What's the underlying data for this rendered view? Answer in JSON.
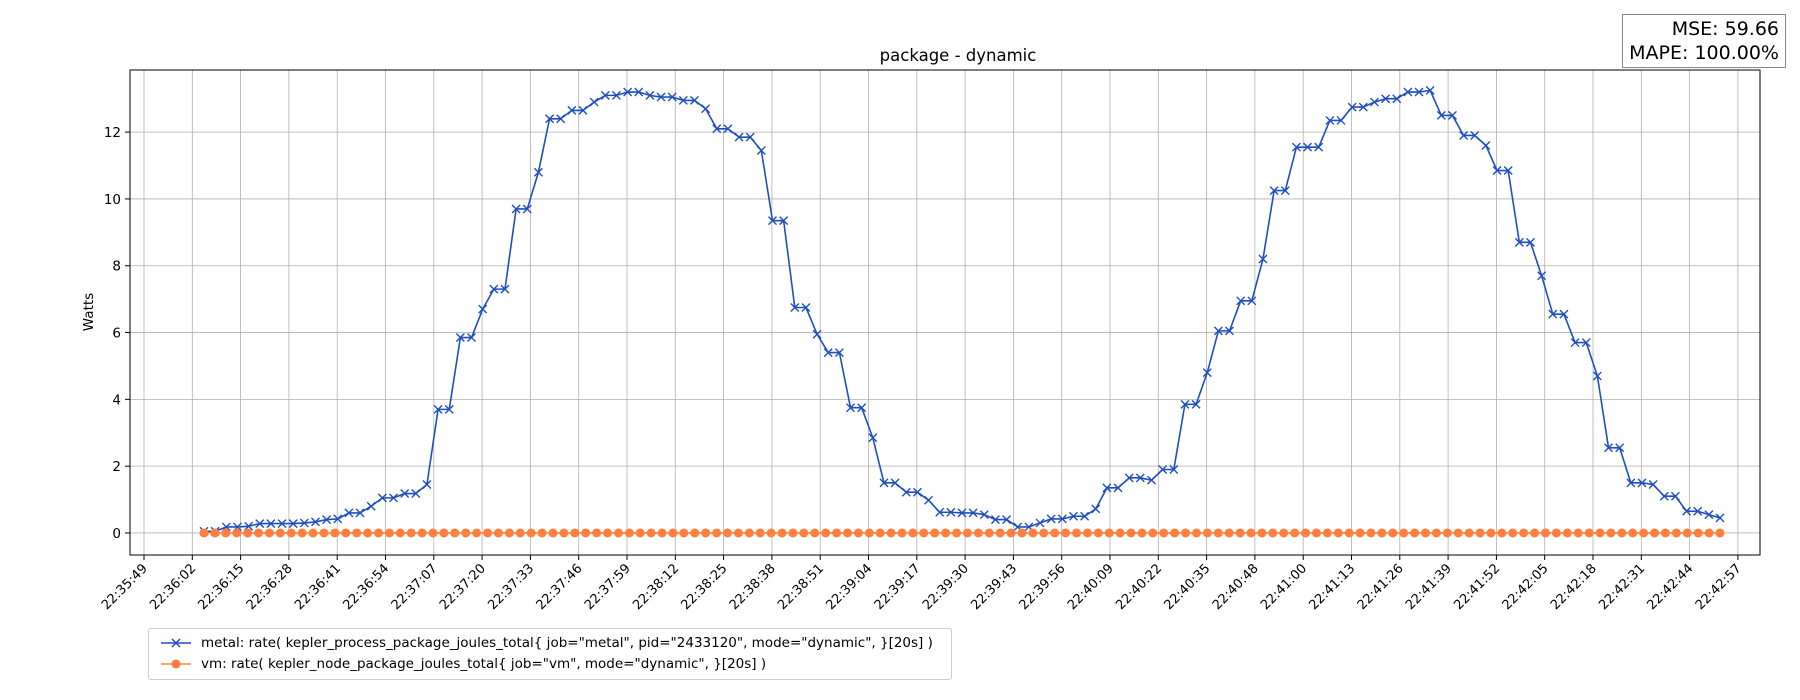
{
  "chart_data": {
    "type": "line",
    "title": "package - dynamic",
    "xlabel": "",
    "ylabel": "Watts",
    "x_tick_labels": [
      "22:35:49",
      "22:36:02",
      "22:36:15",
      "22:36:28",
      "22:36:41",
      "22:36:54",
      "22:37:07",
      "22:37:20",
      "22:37:33",
      "22:37:46",
      "22:37:59",
      "22:38:12",
      "22:38:25",
      "22:38:38",
      "22:38:51",
      "22:39:04",
      "22:39:17",
      "22:39:30",
      "22:39:43",
      "22:39:56",
      "22:40:09",
      "22:40:22",
      "22:40:35",
      "22:40:48",
      "22:41:00",
      "22:41:13",
      "22:41:26",
      "22:41:39",
      "22:41:52",
      "22:42:05",
      "22:42:18",
      "22:42:31",
      "22:42:44",
      "22:42:57"
    ],
    "y_ticks": [
      0,
      2,
      4,
      6,
      8,
      10,
      12
    ],
    "ylim": [
      -0.66,
      13.86
    ],
    "grid": true,
    "legend_position": "below-left",
    "series": [
      {
        "name": "metal: rate( kepler_process_package_joules_total{ job=\"metal\", pid=\"2433120\", mode=\"dynamic\", }[20s] )",
        "color": "#1f4fbf",
        "marker": "x",
        "values": [
          0.05,
          0.05,
          0.18,
          0.18,
          0.2,
          0.28,
          0.28,
          0.28,
          0.28,
          0.3,
          0.33,
          0.4,
          0.42,
          0.6,
          0.6,
          0.8,
          1.05,
          1.05,
          1.18,
          1.18,
          1.45,
          3.7,
          3.7,
          5.85,
          5.85,
          6.7,
          7.3,
          7.3,
          9.7,
          9.7,
          10.8,
          12.4,
          12.4,
          12.65,
          12.65,
          12.9,
          13.1,
          13.1,
          13.2,
          13.2,
          13.1,
          13.05,
          13.05,
          12.95,
          12.95,
          12.7,
          12.1,
          12.1,
          11.85,
          11.85,
          11.45,
          9.35,
          9.35,
          6.75,
          6.75,
          5.95,
          5.4,
          5.4,
          3.75,
          3.75,
          2.85,
          1.5,
          1.5,
          1.22,
          1.22,
          0.98,
          0.62,
          0.62,
          0.6,
          0.6,
          0.55,
          0.4,
          0.4,
          0.18,
          0.18,
          0.3,
          0.42,
          0.42,
          0.5,
          0.5,
          0.72,
          1.35,
          1.35,
          1.65,
          1.65,
          1.58,
          1.9,
          1.9,
          3.85,
          3.85,
          4.8,
          6.05,
          6.05,
          6.95,
          6.95,
          8.2,
          10.25,
          10.25,
          11.55,
          11.55,
          11.55,
          12.35,
          12.35,
          12.75,
          12.75,
          12.9,
          13.0,
          13.0,
          13.2,
          13.2,
          13.25,
          12.5,
          12.5,
          11.9,
          11.9,
          11.6,
          10.85,
          10.85,
          8.7,
          8.7,
          7.7,
          6.55,
          6.55,
          5.7,
          5.7,
          4.7,
          2.55,
          2.55,
          1.5,
          1.5,
          1.45,
          1.1,
          1.1,
          0.65,
          0.65,
          0.55,
          0.45
        ]
      },
      {
        "name": "vm: rate( kepler_node_package_joules_total{ job=\"vm\", mode=\"dynamic\", }[20s] )",
        "color": "#ff7f3f",
        "marker": "o",
        "constant_value": 0,
        "point_count": 140
      }
    ]
  },
  "metrics": {
    "mse": "MSE: 59.66",
    "mape": "MAPE: 100.00%"
  }
}
